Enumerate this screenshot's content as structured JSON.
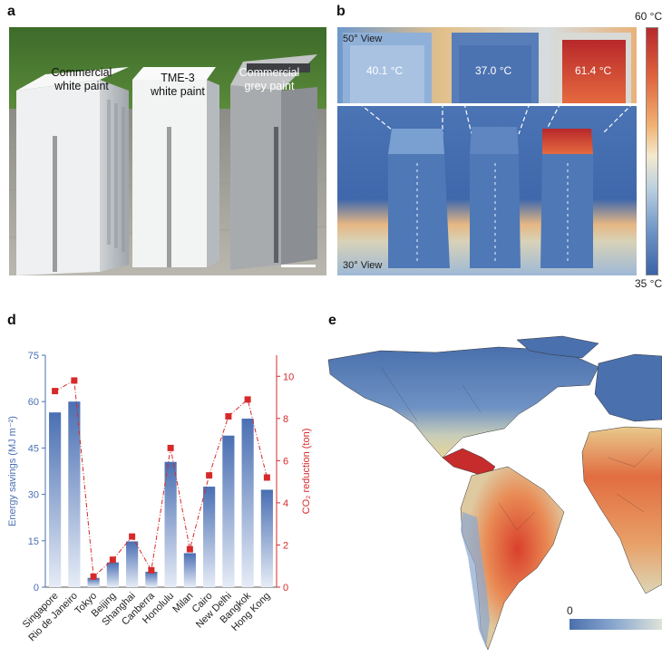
{
  "panels": {
    "a": "a",
    "b": "b",
    "d": "d",
    "e": "e"
  },
  "photo": {
    "labels": [
      "Commercial\nwhite paint",
      "TME-3\nwhite paint",
      "Commercial\ngrey paint"
    ]
  },
  "thermal": {
    "temps": [
      "40.1 °C",
      "37.0 °C",
      "61.4 °C"
    ],
    "view_top": "50° View",
    "view_bottom": "30° View",
    "colorbar_max": "60 °C",
    "colorbar_min": "35 °C"
  },
  "map": {
    "colorbar_min": "0"
  },
  "colors": {
    "bar_top": "#4a6fb3",
    "bar_bottom": "#e6ecf6",
    "line_red": "#d62a2a",
    "axis_left": "#4a6fb3",
    "axis_right": "#d62a2a"
  },
  "chart_data": {
    "type": "bar",
    "categories": [
      "Singapore",
      "Rio de Janeiro",
      "Tokyo",
      "Beijing",
      "Shanghai",
      "Canberra",
      "Honolulu",
      "Milan",
      "Cairo",
      "New Delhi",
      "Bangkok",
      "Hong Kong"
    ],
    "series": [
      {
        "values": [
          56.5,
          60,
          3,
          8,
          14.8,
          5,
          40.5,
          11,
          32.5,
          49,
          54.5,
          31.5
        ],
        "axis": "left"
      },
      {
        "values": [
          9.3,
          9.8,
          0.5,
          1.3,
          2.4,
          0.8,
          6.6,
          1.8,
          5.3,
          8.1,
          8.9,
          5.2
        ],
        "axis": "right",
        "type": "line"
      }
    ],
    "ylabel": "Energy savings (MJ m⁻²)",
    "ylabel_right": "CO₂ reduction (ton)",
    "ylim": [
      0,
      75
    ],
    "ylim_right": [
      0,
      11
    ],
    "yticks": [
      "0",
      "15",
      "30",
      "45",
      "60",
      "75"
    ],
    "yticks_right": [
      "0",
      "2",
      "4",
      "6",
      "8",
      "10"
    ]
  }
}
